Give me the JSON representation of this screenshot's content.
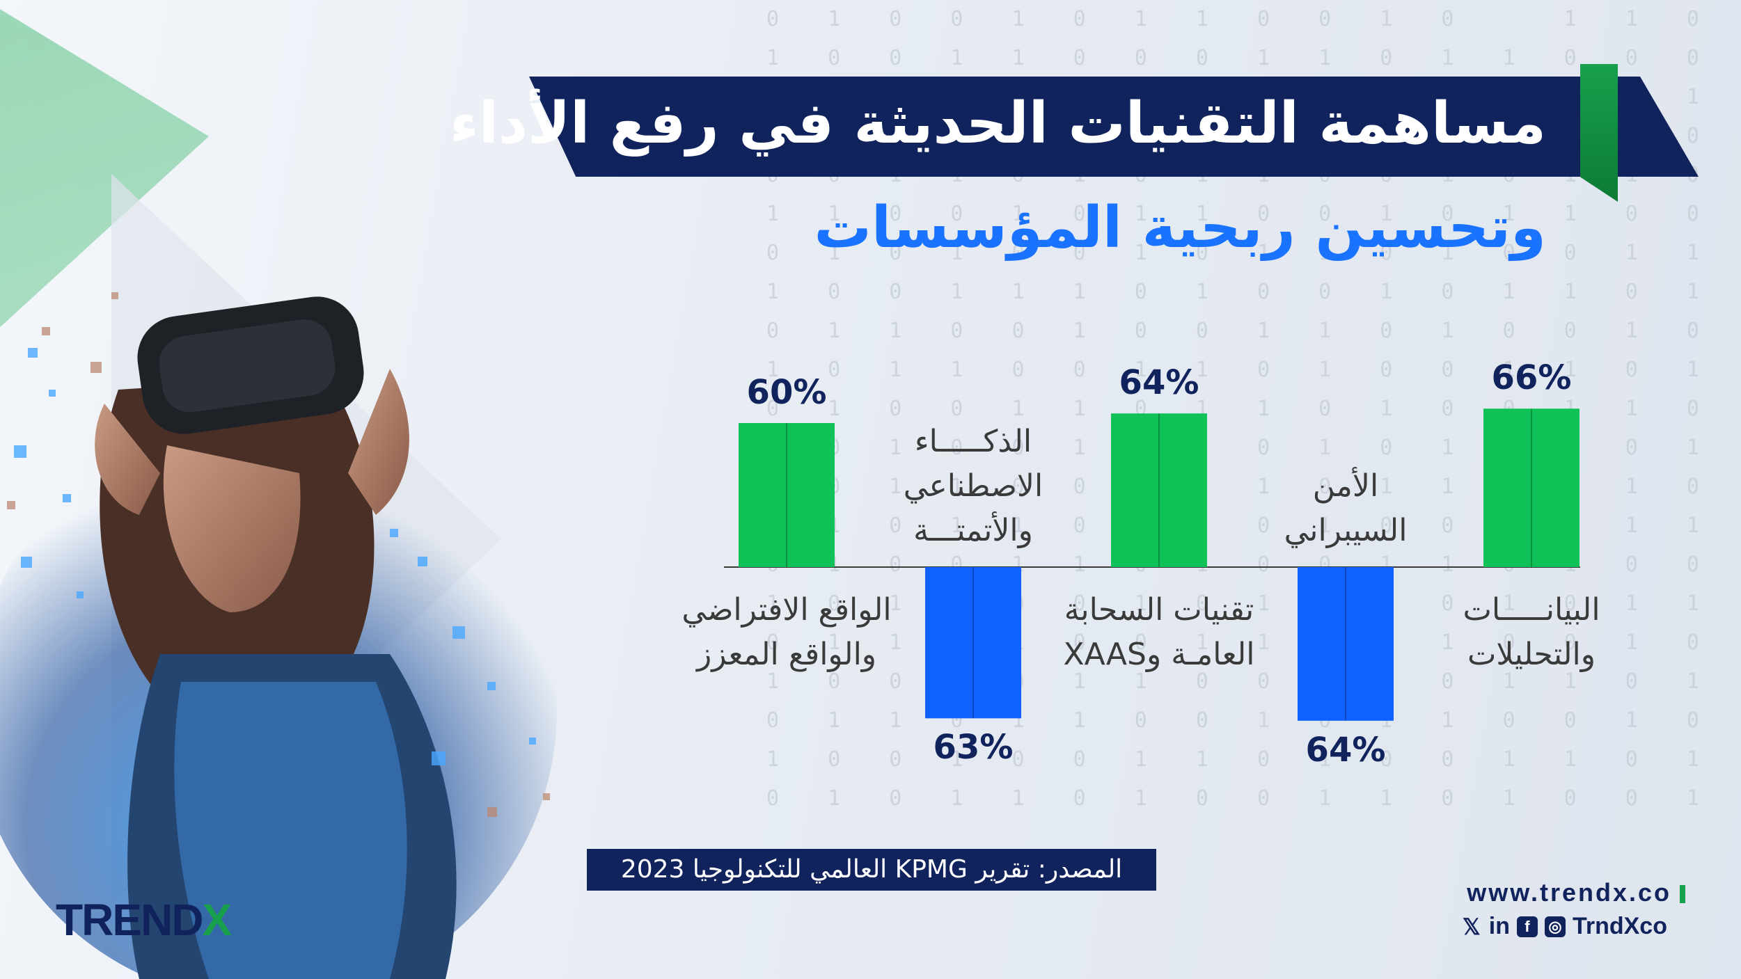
{
  "title_line1": "مساهمة التقنيات الحديثة في رفع الأداء",
  "title_line2": "وتحسين ربحية المؤسسات",
  "source": "المصدر: تقرير KPMG العالمي للتكنولوجيا 2023",
  "logo": {
    "text": "TREND",
    "x": "X"
  },
  "footer": {
    "website": "www.trendx.co",
    "handle": "TrndXco",
    "icons": [
      "x-icon",
      "linkedin-icon",
      "facebook-icon",
      "instagram-icon"
    ]
  },
  "colors": {
    "navy": "#11235c",
    "green": "#0fc157",
    "blue": "#0f62ff",
    "accent_green": "#18a04e",
    "title_blue": "#1a73ff"
  },
  "chart_data": {
    "type": "bar",
    "categories": [
      "البيانـــــات والتحليلات",
      "الأمن السيبراني",
      "تقنيات السحابة العامـة وXAAS",
      "الذكـــــاء الاصطناعي والأتمتـــة",
      "الواقع الافتراضي والواقع المعزز"
    ],
    "values": [
      66,
      64,
      64,
      63,
      60
    ],
    "value_labels": [
      "66%",
      "64%",
      "64%",
      "63%",
      "60%"
    ],
    "direction": [
      "up",
      "down",
      "up",
      "down",
      "up"
    ],
    "unit": "%"
  }
}
